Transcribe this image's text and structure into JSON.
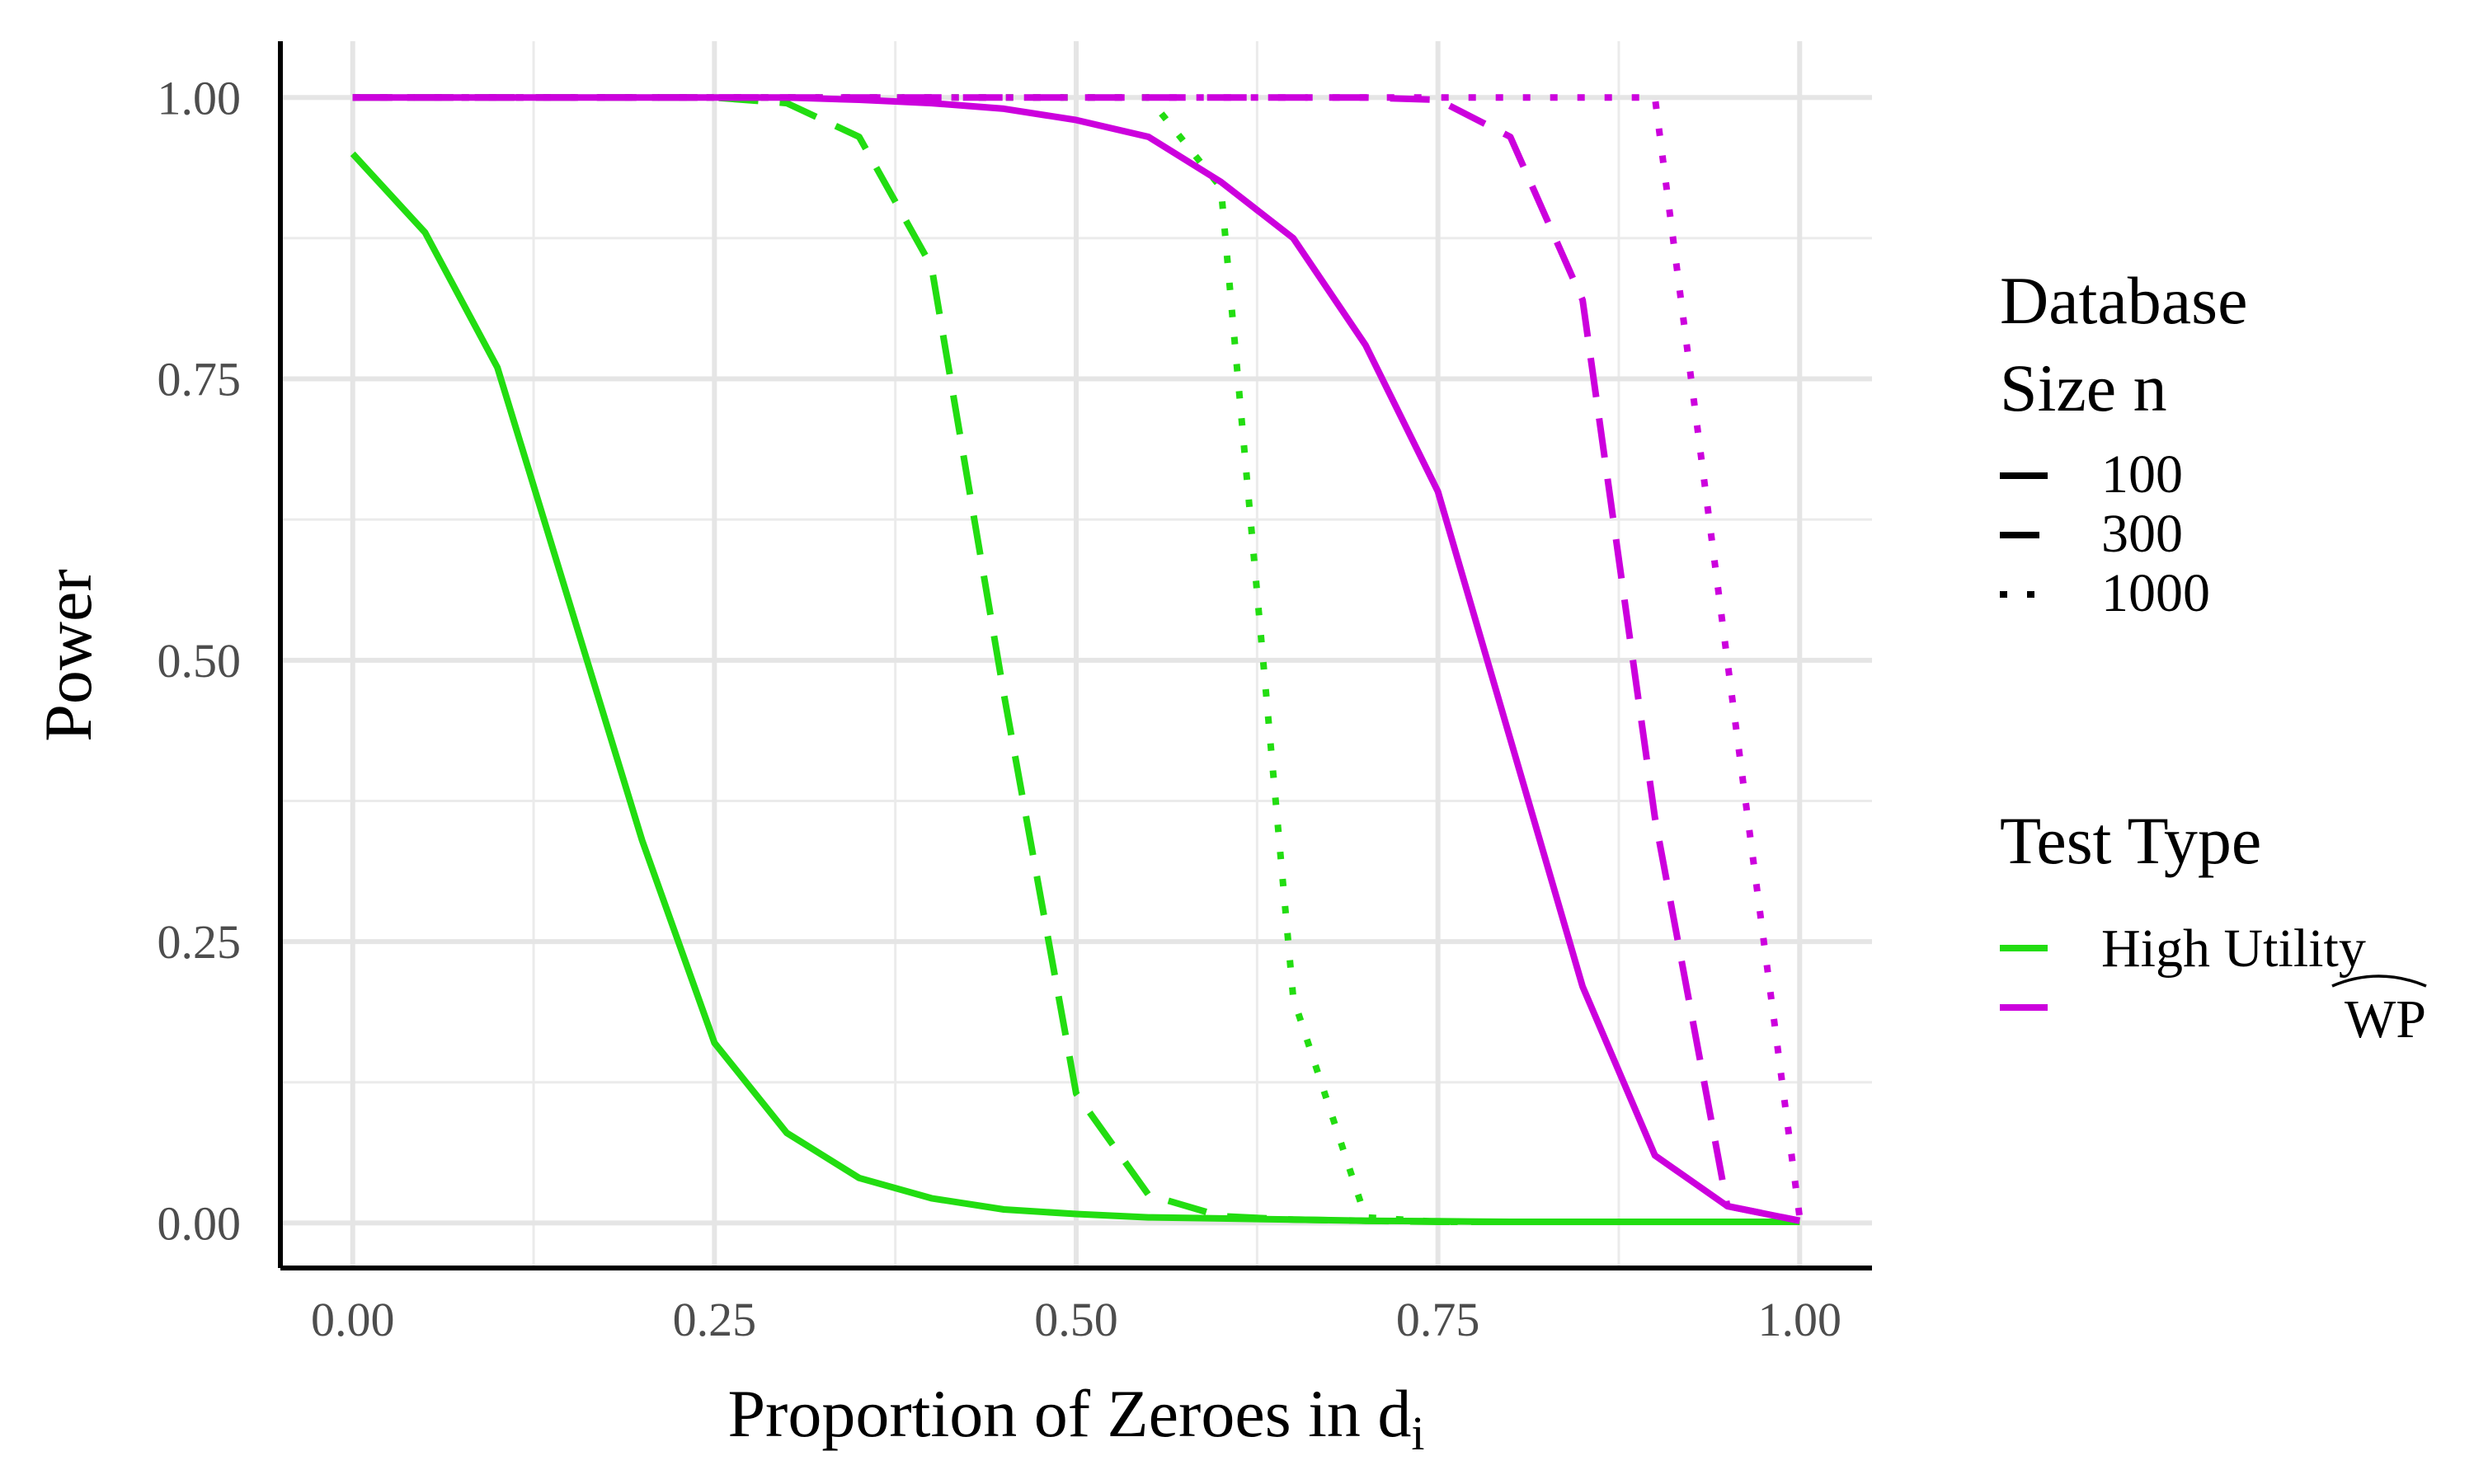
{
  "chart_data": {
    "type": "line",
    "title": "",
    "xlabel": "Proportion of Zeroes in d",
    "xlabel_subscript": "i",
    "ylabel": "Power",
    "xlim": [
      -0.05,
      1.05
    ],
    "ylim": [
      -0.04,
      1.05
    ],
    "x_ticks": [
      0,
      0.25,
      0.5,
      0.75,
      1
    ],
    "x_tick_labels": [
      "0.00",
      "0.25",
      "0.50",
      "0.75",
      "1.00"
    ],
    "y_ticks": [
      0,
      0.25,
      0.5,
      0.75,
      1
    ],
    "y_tick_labels": [
      "0.00",
      "0.25",
      "0.50",
      "0.75",
      "1.00"
    ],
    "grid": true,
    "legend_position": "right",
    "legend_size": {
      "title_line1": "Database",
      "title_line2": "Size n",
      "entries": [
        {
          "label": "100",
          "dash": "solid"
        },
        {
          "label": "300",
          "dash": "dashed"
        },
        {
          "label": "1000",
          "dash": "dotted"
        }
      ]
    },
    "legend_type": {
      "title": "Test Type",
      "entries": [
        {
          "label": "High Utility",
          "color": "#22dd11"
        },
        {
          "label": "WP",
          "color": "#cc00dd",
          "tilde": true
        }
      ]
    },
    "x": [
      0,
      0.05,
      0.1,
      0.15,
      0.2,
      0.25,
      0.3,
      0.35,
      0.4,
      0.45,
      0.5,
      0.55,
      0.6,
      0.65,
      0.7,
      0.75,
      0.8,
      0.85,
      0.9,
      0.95,
      1.0
    ],
    "series": [
      {
        "test": "High Utility",
        "n": "100",
        "color": "#22dd11",
        "dash": "solid",
        "values": [
          0.95,
          0.88,
          0.76,
          0.55,
          0.34,
          0.16,
          0.08,
          0.04,
          0.022,
          0.012,
          0.008,
          0.005,
          0.004,
          0.003,
          0.002,
          0.0015,
          0.001,
          0.001,
          0.001,
          0.001,
          0.001
        ]
      },
      {
        "test": "High Utility",
        "n": "300",
        "color": "#22dd11",
        "dash": "dashed",
        "values": [
          1,
          1,
          1,
          1,
          1,
          1,
          0.995,
          0.965,
          0.85,
          0.47,
          0.115,
          0.025,
          0.006,
          0.003,
          0.002,
          0.001,
          0.001,
          0.001,
          0.001,
          0.001,
          0.001
        ]
      },
      {
        "test": "High Utility",
        "n": "1000",
        "color": "#22dd11",
        "dash": "dotted",
        "values": [
          1,
          1,
          1,
          1,
          1,
          1,
          1,
          1,
          1,
          1,
          1,
          1,
          0.92,
          0.2,
          0.005,
          0.001,
          0.001,
          0.001,
          0.001,
          0.001,
          0.001
        ]
      },
      {
        "test": "WP",
        "n": "100",
        "color": "#cc00dd",
        "dash": "solid",
        "values": [
          1,
          1,
          1,
          1,
          1,
          1,
          1,
          0.998,
          0.995,
          0.99,
          0.98,
          0.965,
          0.925,
          0.875,
          0.78,
          0.65,
          0.43,
          0.21,
          0.06,
          0.015,
          0.002
        ]
      },
      {
        "test": "WP",
        "n": "300",
        "color": "#cc00dd",
        "dash": "dashed",
        "values": [
          1,
          1,
          1,
          1,
          1,
          1,
          1,
          1,
          1,
          1,
          1,
          1,
          1,
          1,
          1,
          0.998,
          0.965,
          0.82,
          0.36,
          0.015,
          0.002
        ]
      },
      {
        "test": "WP",
        "n": "1000",
        "color": "#cc00dd",
        "dash": "dotted",
        "values": [
          1,
          1,
          1,
          1,
          1,
          1,
          1,
          1,
          1,
          1,
          1,
          1,
          1,
          1,
          1,
          1,
          1,
          1,
          1,
          0.5,
          0.005
        ]
      }
    ]
  }
}
